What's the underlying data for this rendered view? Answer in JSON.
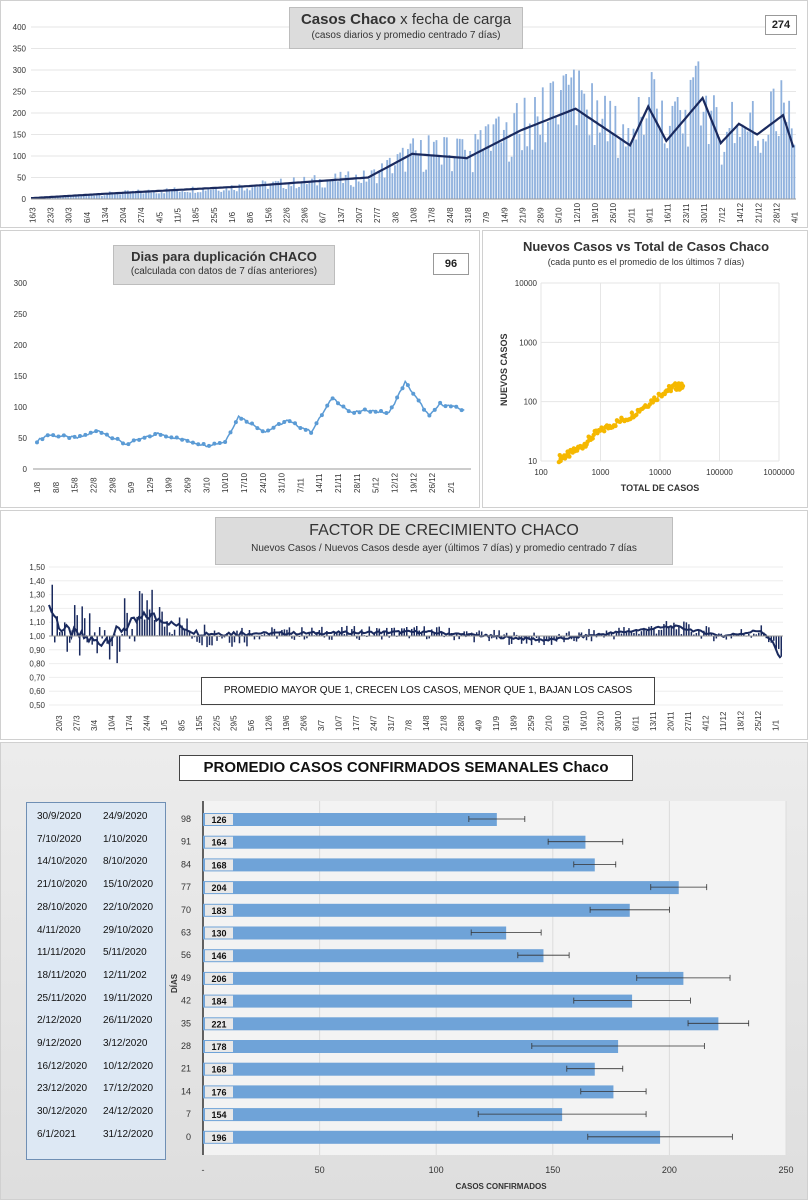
{
  "panel1": {
    "title_main": "Casos Chaco",
    "title_rest": "x fecha de carga",
    "subtitle": "(casos diarios y promedio  centrado 7 días)",
    "value_box": "274",
    "yticks": [
      "0",
      "50",
      "100",
      "150",
      "200",
      "250",
      "300",
      "350",
      "400"
    ],
    "xticks": [
      "16/3",
      "23/3",
      "30/3",
      "6/4",
      "13/4",
      "20/4",
      "27/4",
      "4/5",
      "11/5",
      "18/5",
      "25/5",
      "1/6",
      "8/6",
      "15/6",
      "22/6",
      "29/6",
      "6/7",
      "13/7",
      "20/7",
      "27/7",
      "3/8",
      "10/8",
      "17/8",
      "24/8",
      "31/8",
      "7/9",
      "14/9",
      "21/9",
      "28/9",
      "5/10",
      "12/10",
      "19/10",
      "26/10",
      "2/11",
      "9/11",
      "16/11",
      "23/11",
      "30/11",
      "7/12",
      "14/12",
      "21/12",
      "28/12",
      "4/1"
    ]
  },
  "panel2": {
    "title": "Dias  para  duplicación  CHACO",
    "subtitle": "(calculada con datos de 7 días anteriores)",
    "value_box": "96",
    "yticks": [
      "0",
      "50",
      "100",
      "150",
      "200",
      "250",
      "300"
    ],
    "xticks": [
      "1/8",
      "8/8",
      "15/8",
      "22/8",
      "29/8",
      "5/9",
      "12/9",
      "19/9",
      "26/9",
      "3/10",
      "10/10",
      "17/10",
      "24/10",
      "31/10",
      "7/11",
      "14/11",
      "21/11",
      "28/11",
      "5/12",
      "12/12",
      "19/12",
      "26/12",
      "2/1"
    ]
  },
  "panel3": {
    "title": "Nuevos Casos vs Total de Casos Chaco",
    "subtitle": "(cada punto es el promedio de los últimos 7 días)",
    "ylabel": "NUEVOS CASOS",
    "xlabel": "TOTAL DE CASOS",
    "yticks": [
      "10",
      "100",
      "1000",
      "10000"
    ],
    "xticks": [
      "100",
      "1000",
      "10000",
      "100000",
      "1000000"
    ]
  },
  "panel4": {
    "title": "FACTOR DE CRECIMIENTO CHACO",
    "subtitle": "Nuevos Casos  / Nuevos Casos desde ayer (últimos 7 días) y promedio  centrado 7 días",
    "note": "PROMEDIO MAYOR QUE 1, CRECEN LOS CASOS, MENOR QUE 1, BAJAN LOS CASOS",
    "yticks": [
      "0,50",
      "0,60",
      "0,70",
      "0,80",
      "0,90",
      "1,00",
      "1,10",
      "1,20",
      "1,30",
      "1,40",
      "1,50"
    ],
    "xticks": [
      "20/3",
      "27/3",
      "3/4",
      "10/4",
      "17/4",
      "24/4",
      "1/5",
      "8/5",
      "15/5",
      "22/5",
      "29/5",
      "5/6",
      "12/6",
      "19/6",
      "26/6",
      "3/7",
      "10/7",
      "17/7",
      "24/7",
      "31/7",
      "7/8",
      "14/8",
      "21/8",
      "28/8",
      "4/9",
      "11/9",
      "18/9",
      "25/9",
      "2/10",
      "9/10",
      "16/10",
      "23/10",
      "30/10",
      "6/11",
      "13/11",
      "20/11",
      "27/11",
      "4/12",
      "11/12",
      "18/12",
      "25/12",
      "1/1"
    ]
  },
  "panel5": {
    "title": "PROMEDIO CASOS CONFIRMADOS SEMANALES Chaco",
    "xlabel": "CASOS CONFIRMADOS",
    "ylabel": "DÍAS",
    "xticks": [
      "-",
      "50",
      "100",
      "150",
      "200",
      "250"
    ],
    "rows": [
      {
        "d1": "30/9/2020",
        "d2": "24/9/2020",
        "days": "98",
        "value": 126,
        "err": 12,
        "label": "126"
      },
      {
        "d1": "7/10/2020",
        "d2": "1/10/2020",
        "days": "91",
        "value": 164,
        "err": 16,
        "label": "164"
      },
      {
        "d1": "14/10/2020",
        "d2": "8/10/2020",
        "days": "84",
        "value": 168,
        "err": 9,
        "label": "168"
      },
      {
        "d1": "21/10/2020",
        "d2": "15/10/2020",
        "days": "77",
        "value": 204,
        "err": 12,
        "label": "204"
      },
      {
        "d1": "28/10/2020",
        "d2": "22/10/2020",
        "days": "70",
        "value": 183,
        "err": 17,
        "label": "183"
      },
      {
        "d1": "4/11/2020",
        "d2": "29/10/2020",
        "days": "63",
        "value": 130,
        "err": 15,
        "label": "130"
      },
      {
        "d1": "11/11/2020",
        "d2": "5/11/2020",
        "days": "56",
        "value": 146,
        "err": 11,
        "label": "146"
      },
      {
        "d1": "18/11/2020",
        "d2": "12/11/202",
        "days": "49",
        "value": 206,
        "err": 20,
        "label": "206"
      },
      {
        "d1": "25/11/2020",
        "d2": "19/11/2020",
        "days": "42",
        "value": 184,
        "err": 25,
        "label": "184"
      },
      {
        "d1": "2/12/2020",
        "d2": "26/11/2020",
        "days": "35",
        "value": 221,
        "err": 13,
        "label": "221"
      },
      {
        "d1": "9/12/2020",
        "d2": "3/12/2020",
        "days": "28",
        "value": 178,
        "err": 37,
        "label": "178"
      },
      {
        "d1": "16/12/2020",
        "d2": "10/12/2020",
        "days": "21",
        "value": 168,
        "err": 12,
        "label": "168"
      },
      {
        "d1": "23/12/2020",
        "d2": "17/12/2020",
        "days": "14",
        "value": 176,
        "err": 14,
        "label": "176"
      },
      {
        "d1": "30/12/2020",
        "d2": "24/12/2020",
        "days": "7",
        "value": 154,
        "err": 36,
        "label": "154"
      },
      {
        "d1": "6/1/2021",
        "d2": "31/12/2020",
        "days": "0",
        "value": 196,
        "err": 31,
        "label": "196"
      }
    ]
  },
  "colors": {
    "navy": "#1a2a5e",
    "bar": "#8fb1dd",
    "blue": "#5b9bd5",
    "orange": "#f5b800",
    "barfill": "#6fa3d8"
  },
  "chart_data": [
    {
      "type": "bar",
      "title": "Casos Chaco x fecha de carga",
      "ylim": [
        0,
        400
      ],
      "series": [
        {
          "values_note": "daily cases with 7-day centered average line"
        }
      ],
      "anchors_x_index": [
        0,
        28,
        84,
        130,
        147,
        168,
        189,
        210,
        231,
        238,
        245,
        259,
        266,
        273,
        280,
        290,
        294
      ],
      "anchors_avg": [
        2,
        12,
        30,
        50,
        105,
        95,
        160,
        210,
        125,
        215,
        135,
        235,
        130,
        175,
        150,
        195,
        120
      ]
    },
    {
      "type": "line",
      "title": "Dias para duplicación CHACO",
      "ylim": [
        0,
        300
      ],
      "anchors_x_index": [
        0,
        4,
        15,
        23,
        33,
        45,
        63,
        70,
        75,
        85,
        93,
        102,
        110,
        117,
        123,
        131,
        137,
        146,
        150,
        155,
        158
      ],
      "anchors_y": [
        45,
        55,
        50,
        62,
        40,
        57,
        38,
        44,
        85,
        60,
        78,
        60,
        115,
        90,
        95,
        90,
        140,
        85,
        105,
        100,
        96
      ]
    },
    {
      "type": "scatter",
      "title": "Nuevos Casos vs Total de Casos Chaco",
      "xscale": "log",
      "yscale": "log",
      "xlim": [
        100,
        1000000
      ],
      "ylim": [
        10,
        10000
      ],
      "x": [
        200,
        300,
        500,
        800,
        1500,
        3000,
        6000,
        12000,
        18000,
        25000
      ],
      "y": [
        11,
        13,
        18,
        28,
        40,
        55,
        90,
        150,
        180,
        180
      ]
    },
    {
      "type": "bar",
      "title": "FACTOR DE CRECIMIENTO CHACO",
      "ylim": [
        0.5,
        1.5
      ],
      "anchors_x_index": [
        0,
        5,
        20,
        30,
        40,
        60,
        100,
        150,
        200,
        250,
        270,
        285,
        290,
        293
      ],
      "anchors_avg": [
        1.22,
        1.05,
        0.95,
        1.06,
        1.15,
        1.02,
        1.02,
        1.03,
        0.97,
        1.07,
        1.0,
        1.04,
        0.95,
        0.83
      ]
    },
    {
      "type": "bar",
      "title": "PROMEDIO CASOS CONFIRMADOS SEMANALES Chaco",
      "categories": [
        "98",
        "91",
        "84",
        "77",
        "70",
        "63",
        "56",
        "49",
        "42",
        "35",
        "28",
        "21",
        "14",
        "7",
        "0"
      ],
      "values": [
        126,
        164,
        168,
        204,
        183,
        130,
        146,
        206,
        184,
        221,
        178,
        168,
        176,
        154,
        196
      ],
      "xlim": [
        0,
        250
      ]
    }
  ]
}
